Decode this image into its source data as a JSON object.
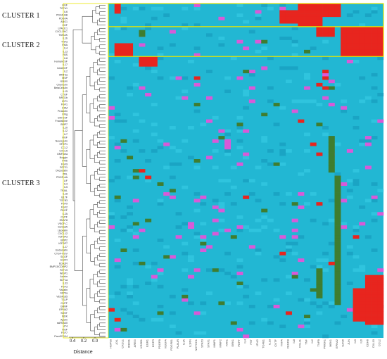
{
  "clusters": [
    "CLUSTER 1",
    "CLUSTER 2",
    "CLUSTER 3"
  ],
  "row_labels": [
    "HGF",
    "TGFb1",
    "IL6",
    "PDGF-BB",
    "PDGFA",
    "ANG1",
    "EGF",
    "LPA16:1",
    "CXCL1/KC",
    "TWEAK",
    "IL1b",
    "TNFa",
    "PMA",
    "IL4",
    "IL13",
    "FBS",
    "IL8",
    "HumanCSF",
    "IL17",
    "betaNGF",
    "IL2",
    "WNT3a",
    "MSP",
    "relaxin",
    "Chemerin",
    "BetaCellulin",
    "IL15",
    "CTGF",
    "NRG1b",
    "IGF1",
    "FGF1",
    "OSM",
    "Prolactin",
    "IFNg",
    "GM-CSF",
    "Fractalkine",
    "BMP7",
    "IL10",
    "IL12",
    "IL7",
    "HGF",
    "Neuregulin",
    "SFRP1",
    "CCL2",
    "CXCL5",
    "GMFbeta",
    "Noggin",
    "IFNb",
    "FGF9",
    "FGF21",
    "Oncostatin",
    "PRL",
    "PDGF-AA",
    "LIF",
    "IL3",
    "IL5",
    "TRAIL",
    "IL18",
    "IL17F",
    "TGFB3",
    "FGF9",
    "FGF2",
    "PDGF",
    "IL2A",
    "CNTF",
    "ENA78",
    "VEGF-C",
    "Sema3A",
    "Lipocalin",
    "CXCL12",
    "IGFBP3",
    "BMP2",
    "IGFBP7",
    "IL27",
    "Endostatin",
    "CTGF-NOV",
    "SCGF",
    "EGFR",
    "EDA2R",
    "BMP13/CDMP2",
    "FGF19",
    "WISP1",
    "Activin",
    "SDF1a",
    "IL33",
    "FGF3",
    "Visfatin",
    "MIP3a",
    "VEGF165",
    "TSLP",
    "CNTF",
    "GDNF",
    "EPHA2",
    "SOST",
    "MDK",
    "Apelin",
    "ssRNA40",
    "NT4",
    "NGF",
    "FGF7",
    "Pam3CSK4"
  ],
  "col_labels": [
    "HSP90",
    "AXL",
    "CXCL1",
    "IDKM1",
    "AREG",
    "KSSB1",
    "EGR1",
    "EGFR",
    "PDGFB",
    "VEGFA",
    "PDGFB1",
    "PLAUR",
    "IL1A",
    "IL1RN",
    "NOTCH1",
    "STAT3",
    "STAT1",
    "MMP1",
    "MMP2",
    "FAK1",
    "ERK1",
    "PDPT",
    "IL4",
    "FST",
    "IFNG",
    "TGFB1",
    "IL10",
    "CNTF",
    "TNFA",
    "VEGFB",
    "IL8",
    "CXL11",
    "TNF",
    "IL2",
    "TNFB",
    "PROK1",
    "MEK1",
    "EPHA2",
    "GAS6",
    "JUN",
    "IL9",
    "IL6",
    "CDH6",
    "CXL10",
    "CCL2"
  ],
  "axis_label": "Distance",
  "axis_ticks": [
    "0.4",
    "0.2",
    "0.0"
  ],
  "colors": {
    "base": "#22b7d3",
    "high": "#e8251e",
    "low": "#3f7d2f",
    "mark": "#d85ad8",
    "highlight": "#e8e600",
    "dendro": "#222222"
  }
}
